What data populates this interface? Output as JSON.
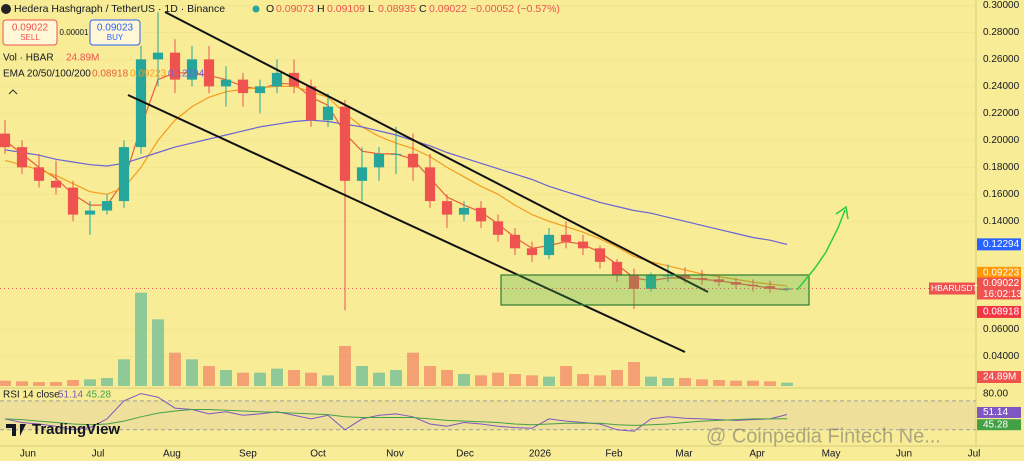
{
  "header": {
    "symbol": "Hedera Hashgraph / TetherUS · 1D · Binance",
    "ohlc": [
      {
        "key": "O",
        "value": 0.09073
      },
      {
        "key": "H",
        "value": 0.09109
      },
      {
        "key": "L",
        "value": 0.08935
      },
      {
        "key": "C",
        "value": 0.09022
      }
    ],
    "change": "−0.00052 (−0.57%)",
    "sell": {
      "price": 0.09022,
      "label": "SELL"
    },
    "spread": 1e-05,
    "buy": {
      "price": 0.09023,
      "label": "BUY"
    },
    "volume_title": "Vol · HBAR",
    "volume_value": "24.89M",
    "ema_title": "EMA 20/50/100/200"
  },
  "chart_data": [
    {
      "type": "candlestick",
      "open": [
        0.205,
        0.195,
        0.18,
        0.17,
        0.165,
        0.145,
        0.148,
        0.155,
        0.195,
        0.26,
        0.265,
        0.245,
        0.26,
        0.24,
        0.245,
        0.235,
        0.24,
        0.25,
        0.24,
        0.215,
        0.225,
        0.17,
        0.18,
        0.19,
        0.19,
        0.18,
        0.155,
        0.145,
        0.15,
        0.14,
        0.13,
        0.12,
        0.115,
        0.13,
        0.125,
        0.12,
        0.11,
        0.1,
        0.09,
        0.1,
        0.1,
        0.098,
        0.097,
        0.095,
        0.093,
        0.092,
        0.09
      ],
      "high": [
        0.215,
        0.2,
        0.19,
        0.185,
        0.17,
        0.155,
        0.16,
        0.2,
        0.27,
        0.295,
        0.275,
        0.27,
        0.27,
        0.255,
        0.25,
        0.245,
        0.26,
        0.26,
        0.245,
        0.235,
        0.23,
        0.195,
        0.195,
        0.21,
        0.205,
        0.19,
        0.16,
        0.155,
        0.155,
        0.145,
        0.135,
        0.125,
        0.135,
        0.14,
        0.13,
        0.122,
        0.112,
        0.105,
        0.102,
        0.108,
        0.106,
        0.104,
        0.1,
        0.098,
        0.097,
        0.096,
        0.0911
      ],
      "low": [
        0.19,
        0.175,
        0.165,
        0.16,
        0.14,
        0.13,
        0.145,
        0.15,
        0.19,
        0.24,
        0.235,
        0.24,
        0.235,
        0.225,
        0.225,
        0.22,
        0.235,
        0.235,
        0.21,
        0.21,
        0.074,
        0.155,
        0.17,
        0.175,
        0.17,
        0.15,
        0.135,
        0.14,
        0.135,
        0.125,
        0.115,
        0.11,
        0.112,
        0.12,
        0.115,
        0.105,
        0.095,
        0.075,
        0.088,
        0.095,
        0.094,
        0.093,
        0.092,
        0.09,
        0.088,
        0.087,
        0.0885
      ],
      "close": [
        0.195,
        0.18,
        0.17,
        0.165,
        0.145,
        0.148,
        0.155,
        0.195,
        0.26,
        0.265,
        0.245,
        0.26,
        0.24,
        0.245,
        0.235,
        0.24,
        0.25,
        0.24,
        0.215,
        0.225,
        0.17,
        0.18,
        0.19,
        0.19,
        0.18,
        0.155,
        0.145,
        0.15,
        0.14,
        0.13,
        0.12,
        0.115,
        0.13,
        0.125,
        0.12,
        0.11,
        0.1,
        0.09,
        0.1,
        0.1,
        0.098,
        0.097,
        0.095,
        0.093,
        0.092,
        0.09,
        0.09022
      ],
      "up_color": "#26a69a",
      "down_color": "#ef5350",
      "volume": [
        40,
        35,
        30,
        30,
        45,
        50,
        60,
        200,
        700,
        500,
        250,
        200,
        150,
        120,
        100,
        100,
        130,
        120,
        100,
        80,
        300,
        150,
        100,
        120,
        250,
        150,
        120,
        90,
        80,
        100,
        90,
        80,
        70,
        150,
        90,
        80,
        120,
        180,
        70,
        60,
        60,
        50,
        45,
        40,
        40,
        35,
        24.89
      ],
      "vlim": [
        0,
        750
      ],
      "lines": [
        {
          "color": "#e8603c",
          "label_color": "#f23645",
          "values": [
            0.2,
            0.19,
            0.18,
            0.172,
            0.16,
            0.152,
            0.152,
            0.17,
            0.21,
            0.245,
            0.25,
            0.25,
            0.248,
            0.245,
            0.24,
            0.238,
            0.242,
            0.242,
            0.232,
            0.226,
            0.205,
            0.192,
            0.19,
            0.19,
            0.186,
            0.172,
            0.158,
            0.152,
            0.147,
            0.138,
            0.128,
            0.12,
            0.122,
            0.125,
            0.123,
            0.117,
            0.108,
            0.098,
            0.096,
            0.098,
            0.098,
            0.097,
            0.096,
            0.094,
            0.0925,
            0.0905,
            0.08918
          ]
        },
        {
          "color": "#f59c1a",
          "label_color": "#ff9800",
          "values": [
            0.185,
            0.182,
            0.178,
            0.174,
            0.168,
            0.162,
            0.16,
            0.165,
            0.18,
            0.2,
            0.215,
            0.225,
            0.232,
            0.236,
            0.238,
            0.239,
            0.24,
            0.24,
            0.236,
            0.232,
            0.22,
            0.21,
            0.203,
            0.198,
            0.194,
            0.188,
            0.18,
            0.173,
            0.166,
            0.16,
            0.152,
            0.145,
            0.14,
            0.136,
            0.132,
            0.127,
            0.121,
            0.114,
            0.11,
            0.107,
            0.104,
            0.101,
            0.099,
            0.097,
            0.095,
            0.0935,
            0.09223
          ]
        },
        {
          "color": "#6b63d6",
          "label_color": "#2962ff",
          "values": [
            0.193,
            0.191,
            0.189,
            0.186,
            0.184,
            0.182,
            0.181,
            0.183,
            0.187,
            0.191,
            0.195,
            0.198,
            0.201,
            0.204,
            0.207,
            0.21,
            0.212,
            0.214,
            0.215,
            0.214,
            0.212,
            0.21,
            0.207,
            0.204,
            0.2,
            0.196,
            0.191,
            0.187,
            0.183,
            0.179,
            0.175,
            0.171,
            0.166,
            0.162,
            0.158,
            0.154,
            0.151,
            0.148,
            0.146,
            0.143,
            0.14,
            0.137,
            0.134,
            0.131,
            0.128,
            0.126,
            0.12294
          ]
        }
      ],
      "symbol_tag": "HBARUSDT",
      "countdown": "16:02:13",
      "ylim": [
        0.018,
        0.304
      ],
      "yticks": [
        {
          "value": 0.3,
          "label": "0.30000"
        },
        {
          "value": 0.28,
          "label": "0.28000"
        },
        {
          "value": 0.26,
          "label": "0.26000"
        },
        {
          "value": 0.24,
          "label": "0.24000"
        },
        {
          "value": 0.22,
          "label": "0.22000"
        },
        {
          "value": 0.2,
          "label": "0.20000"
        },
        {
          "value": 0.18,
          "label": "0.18000"
        },
        {
          "value": 0.16,
          "label": "0.16000"
        },
        {
          "value": 0.14,
          "label": "0.14000"
        },
        {
          "value": 0.06,
          "label": "0.06000"
        },
        {
          "value": 0.04,
          "label": "0.04000"
        }
      ],
      "xlim": [
        -0.294,
        59.94
      ],
      "xticks": [
        {
          "value": 1.35,
          "label": "Jun"
        },
        {
          "value": 5.47,
          "label": "Jul"
        },
        {
          "value": 9.82,
          "label": "Aug"
        },
        {
          "value": 14.29,
          "label": "Sep"
        },
        {
          "value": 18.41,
          "label": "Oct"
        },
        {
          "value": 22.94,
          "label": "Nov"
        },
        {
          "value": 27.06,
          "label": "Dec"
        },
        {
          "value": 31.47,
          "label": "2026"
        },
        {
          "value": 35.82,
          "label": "Feb"
        },
        {
          "value": 39.94,
          "label": "Mar"
        },
        {
          "value": 44.24,
          "label": "Apr"
        },
        {
          "value": 48.59,
          "label": "May"
        },
        {
          "value": 52.88,
          "label": "Jun"
        },
        {
          "value": 57.0,
          "label": "Jul"
        }
      ]
    },
    {
      "type": "line",
      "title": "RSI 14 close",
      "series": [
        {
          "color": "#7e57c2",
          "values": [
            45,
            40,
            38,
            35,
            30,
            33,
            45,
            70,
            80,
            75,
            60,
            58,
            52,
            55,
            50,
            52,
            55,
            50,
            45,
            50,
            30,
            45,
            50,
            52,
            48,
            38,
            35,
            40,
            38,
            35,
            33,
            32,
            45,
            42,
            40,
            38,
            30,
            28,
            45,
            48,
            46,
            45,
            44,
            43,
            44,
            45,
            51.14
          ]
        },
        {
          "color": "#43a047",
          "values": [
            45,
            44,
            42,
            40,
            38,
            37,
            38,
            42,
            48,
            53,
            56,
            58,
            58,
            57,
            56,
            55,
            54,
            53,
            52,
            51,
            48,
            47,
            47,
            47,
            47,
            45,
            43,
            42,
            41,
            40,
            38,
            37,
            38,
            39,
            39,
            39,
            37,
            36,
            37,
            38,
            40,
            42,
            43,
            44,
            45,
            45,
            45.28
          ]
        }
      ],
      "band": [
        30,
        70
      ],
      "ylim": [
        20,
        85
      ],
      "yticks": [
        {
          "value": 80,
          "label": "80.00"
        }
      ]
    }
  ],
  "logo": "TradingView",
  "watermark": "@ Coinpedia Fintech Ne..."
}
